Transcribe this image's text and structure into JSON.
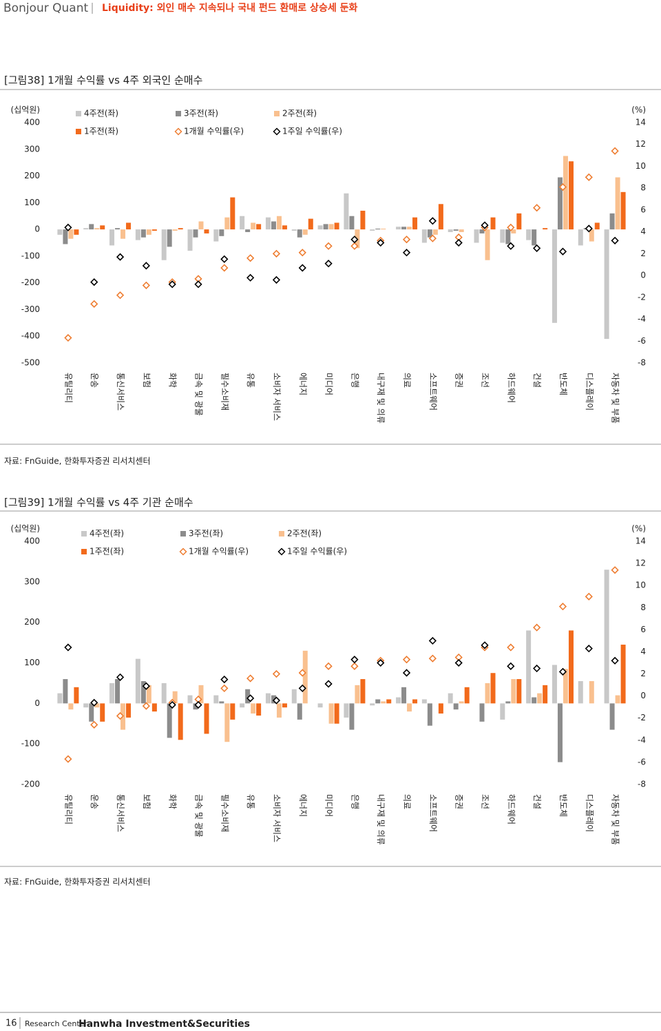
{
  "header": {
    "brand": "Bonjour Quant",
    "title": "Liquidity: 외인 매수 지속되나 국내 펀드 환매로 상승세 둔화"
  },
  "chart_data": [
    {
      "type": "bar",
      "title": "[그림38] 1개월 수익률 vs 4주 외국인 순매수",
      "source": "자료: FnGuide, 한화투자증권 리서치센터",
      "y_label": "(십억원)",
      "y2_label": "(%)",
      "categories": [
        "유틸리티",
        "운송",
        "통신서비스",
        "보험",
        "화학",
        "금속 및 광물",
        "필수소비재",
        "유통",
        "소비자 서비스",
        "에너지",
        "미디어",
        "은행",
        "내구재 및 의류",
        "의료",
        "소프트웨어",
        "증권",
        "조선",
        "하드웨어",
        "건설",
        "반도체",
        "디스플레이",
        "자동차 및 부품"
      ],
      "series": [
        {
          "name": "4주전(좌)",
          "color": "#c8c8c8",
          "values": [
            -20,
            5,
            -60,
            -40,
            -115,
            -80,
            -45,
            50,
            45,
            -5,
            15,
            135,
            -5,
            10,
            -50,
            -10,
            -50,
            -50,
            -40,
            -350,
            -60,
            -410
          ]
        },
        {
          "name": "3주전(좌)",
          "color": "#8c8c8c",
          "values": [
            -55,
            20,
            5,
            -30,
            -65,
            -30,
            -25,
            -10,
            30,
            -30,
            20,
            50,
            3,
            10,
            -30,
            -5,
            -15,
            -55,
            -60,
            195,
            5,
            60
          ]
        },
        {
          "name": "2주전(좌)",
          "color": "#f9c08f",
          "values": [
            -35,
            5,
            -35,
            -20,
            -5,
            30,
            45,
            25,
            50,
            -20,
            20,
            -70,
            3,
            10,
            -20,
            -10,
            -115,
            -15,
            0,
            275,
            -45,
            195
          ]
        },
        {
          "name": "1주전(좌)",
          "color": "#f26a1b",
          "values": [
            -20,
            15,
            25,
            -5,
            5,
            -15,
            120,
            20,
            15,
            40,
            25,
            70,
            0,
            45,
            95,
            0,
            45,
            60,
            5,
            255,
            25,
            140
          ]
        },
        {
          "name": "1개월 수익률(우)",
          "color": "#ee7d31",
          "axis": "y2",
          "values": [
            -5.7,
            -2.6,
            -1.8,
            -0.9,
            -0.6,
            -0.3,
            0.7,
            1.6,
            2.0,
            2.1,
            2.7,
            2.7,
            3.2,
            3.3,
            3.4,
            3.5,
            4.4,
            4.4,
            6.2,
            8.1,
            9.0,
            11.4
          ]
        },
        {
          "name": "1주일 수익률(우)",
          "color": "#000000",
          "axis": "y2",
          "values": [
            4.4,
            -0.6,
            1.7,
            0.9,
            -0.8,
            -0.8,
            1.5,
            -0.2,
            -0.4,
            0.7,
            1.1,
            3.3,
            3.0,
            2.1,
            5.0,
            3.0,
            4.6,
            2.7,
            2.5,
            2.2,
            4.3,
            3.2
          ]
        }
      ],
      "ylim": [
        -500,
        400
      ],
      "yticks": [
        -500,
        -400,
        -300,
        -200,
        -100,
        0,
        100,
        200,
        300,
        400
      ],
      "y2lim": [
        -8,
        14
      ],
      "y2ticks": [
        -8,
        -6,
        -4,
        -2,
        0,
        2,
        4,
        6,
        8,
        10,
        12,
        14
      ]
    },
    {
      "type": "bar",
      "title": "[그림39] 1개월 수익률 vs 4주 기관 순매수",
      "source": "자료: FnGuide, 한화투자증권 리서치센터",
      "y_label": "(십억원)",
      "y2_label": "(%)",
      "categories": [
        "유틸리티",
        "운송",
        "통신서비스",
        "보험",
        "화학",
        "금속 및 광물",
        "필수소비재",
        "유통",
        "소비자 서비스",
        "에너지",
        "미디어",
        "은행",
        "내구재 및 의류",
        "의료",
        "소프트웨어",
        "증권",
        "조선",
        "하드웨어",
        "건설",
        "반도체",
        "디스플레이",
        "자동차 및 부품"
      ],
      "series": [
        {
          "name": "4주전(좌)",
          "color": "#c8c8c8",
          "values": [
            25,
            -10,
            50,
            110,
            50,
            20,
            20,
            -10,
            25,
            35,
            -10,
            -35,
            -5,
            15,
            10,
            25,
            0,
            -40,
            180,
            95,
            55,
            330
          ]
        },
        {
          "name": "3주전(좌)",
          "color": "#8c8c8c",
          "values": [
            60,
            -45,
            60,
            55,
            -85,
            -15,
            5,
            35,
            20,
            -40,
            0,
            -65,
            10,
            40,
            -55,
            -15,
            -45,
            5,
            15,
            -145,
            0,
            -65
          ]
        },
        {
          "name": "2주전(좌)",
          "color": "#f9c08f",
          "values": [
            -15,
            -10,
            -65,
            45,
            30,
            45,
            -95,
            -25,
            -35,
            130,
            -50,
            45,
            5,
            -20,
            0,
            5,
            50,
            60,
            25,
            85,
            55,
            20
          ]
        },
        {
          "name": "1주전(좌)",
          "color": "#f26a1b",
          "values": [
            40,
            -45,
            -35,
            -20,
            -90,
            -75,
            -40,
            -30,
            -10,
            0,
            -50,
            60,
            10,
            10,
            -25,
            40,
            75,
            60,
            45,
            180,
            0,
            145
          ]
        },
        {
          "name": "1개월 수익률(우)",
          "color": "#ee7d31",
          "axis": "y2",
          "values": [
            -5.7,
            -2.6,
            -1.8,
            -0.9,
            -0.6,
            -0.3,
            0.7,
            1.6,
            2.0,
            2.1,
            2.7,
            2.7,
            3.2,
            3.3,
            3.4,
            3.5,
            4.4,
            4.4,
            6.2,
            8.1,
            9.0,
            11.4
          ]
        },
        {
          "name": "1주일 수익률(우)",
          "color": "#000000",
          "axis": "y2",
          "values": [
            4.4,
            -0.6,
            1.7,
            0.9,
            -0.8,
            -0.8,
            1.5,
            -0.2,
            -0.4,
            0.7,
            1.1,
            3.3,
            3.0,
            2.1,
            5.0,
            3.0,
            4.6,
            2.7,
            2.5,
            2.2,
            4.3,
            3.2
          ]
        }
      ],
      "ylim": [
        -200,
        400
      ],
      "yticks": [
        -200,
        -100,
        0,
        100,
        200,
        300,
        400
      ],
      "y2lim": [
        -8,
        14
      ],
      "y2ticks": [
        -8,
        -6,
        -4,
        -2,
        0,
        2,
        4,
        6,
        8,
        10,
        12,
        14
      ]
    }
  ],
  "footer": {
    "page": "16",
    "center": "Research Center",
    "company": "Hanwha Investment&Securities"
  }
}
